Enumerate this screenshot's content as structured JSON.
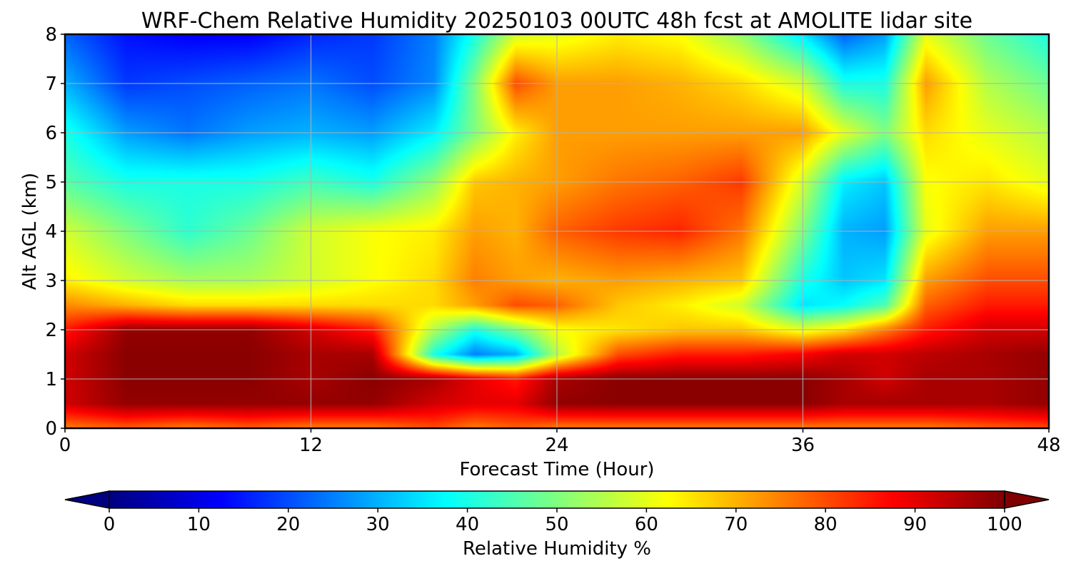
{
  "chart_data": {
    "type": "heatmap",
    "title": "WRF-Chem Relative Humidity 20250103 00UTC 48h fcst at AMOLITE lidar site",
    "xlabel": "Forecast Time (Hour)",
    "ylabel": "Alt AGL (km)",
    "xlim": [
      0,
      48
    ],
    "ylim": [
      0,
      8
    ],
    "xticks": [
      0,
      12,
      24,
      36,
      48
    ],
    "yticks": [
      0,
      1,
      2,
      3,
      4,
      5,
      6,
      7,
      8
    ],
    "grid": true,
    "colormap": "jet",
    "colorbar": {
      "label": "Relative Humidity %",
      "range": [
        0,
        100
      ],
      "ticks": [
        0,
        10,
        20,
        30,
        40,
        50,
        60,
        70,
        80,
        90,
        100
      ],
      "extend": "both",
      "orientation": "horizontal",
      "placement": "bottom"
    },
    "x": [
      0,
      3,
      6,
      9,
      12,
      15,
      18,
      20,
      22,
      24,
      27,
      30,
      33,
      36,
      38,
      40,
      42,
      45,
      48
    ],
    "y": [
      0,
      0.5,
      1,
      1.5,
      2,
      2.5,
      3,
      4,
      5,
      6,
      7,
      8
    ],
    "values": [
      [
        75,
        78,
        75,
        78,
        75,
        75,
        80,
        75,
        78,
        75,
        75,
        75,
        75,
        75,
        75,
        75,
        75,
        78,
        80
      ],
      [
        92,
        98,
        98,
        98,
        98,
        98,
        92,
        90,
        90,
        98,
        99,
        99,
        99,
        99,
        96,
        96,
        96,
        96,
        98
      ],
      [
        92,
        99,
        99,
        99,
        96,
        99,
        96,
        90,
        85,
        96,
        99,
        99,
        99,
        99,
        96,
        92,
        96,
        96,
        98
      ],
      [
        92,
        99,
        99,
        99,
        96,
        96,
        40,
        25,
        30,
        55,
        80,
        85,
        85,
        88,
        92,
        92,
        94,
        96,
        98
      ],
      [
        85,
        98,
        98,
        98,
        92,
        85,
        55,
        40,
        50,
        62,
        65,
        68,
        68,
        60,
        65,
        75,
        85,
        92,
        92
      ],
      [
        74,
        70,
        66,
        66,
        66,
        66,
        66,
        72,
        80,
        78,
        68,
        64,
        58,
        35,
        38,
        45,
        78,
        85,
        85
      ],
      [
        64,
        58,
        54,
        54,
        58,
        62,
        66,
        75,
        72,
        70,
        72,
        70,
        68,
        40,
        32,
        35,
        72,
        80,
        80
      ],
      [
        58,
        50,
        42,
        48,
        58,
        62,
        64,
        72,
        70,
        78,
        82,
        84,
        76,
        50,
        30,
        28,
        60,
        72,
        72
      ],
      [
        46,
        40,
        40,
        40,
        44,
        40,
        52,
        68,
        70,
        72,
        76,
        78,
        82,
        58,
        36,
        32,
        62,
        65,
        60
      ],
      [
        40,
        28,
        24,
        28,
        30,
        28,
        36,
        50,
        64,
        72,
        72,
        72,
        72,
        72,
        60,
        50,
        66,
        60,
        55
      ],
      [
        30,
        18,
        20,
        22,
        24,
        20,
        26,
        50,
        80,
        72,
        72,
        70,
        66,
        58,
        40,
        40,
        72,
        55,
        48
      ],
      [
        22,
        14,
        12,
        12,
        16,
        18,
        25,
        40,
        58,
        60,
        64,
        62,
        52,
        35,
        22,
        28,
        60,
        48,
        40
      ]
    ]
  }
}
